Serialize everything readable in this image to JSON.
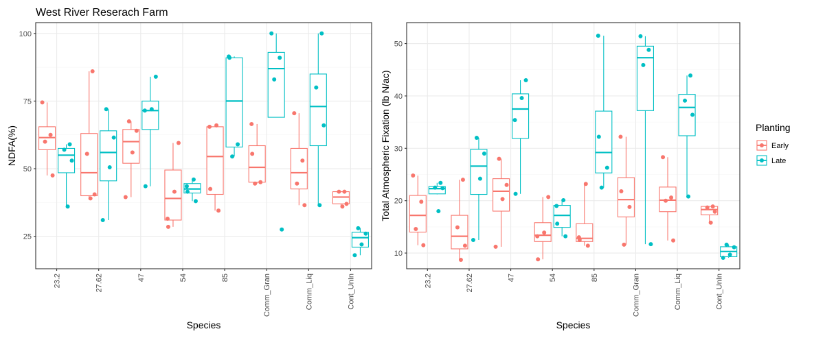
{
  "chart_data": [
    {
      "type": "box",
      "title": "West River Reserach Farm",
      "xlabel": "Species",
      "ylabel": "NDFA(%)",
      "categories": [
        "23.2",
        "27.62",
        "47",
        "54",
        "85",
        "Comm_Gran",
        "Comm_Liq",
        "Cont_UnIn"
      ],
      "ylim": [
        13,
        104
      ],
      "yticks": [
        25,
        50,
        75,
        100
      ],
      "grid": true,
      "series": [
        {
          "name": "Early",
          "color": "#F8766D",
          "boxes": [
            {
              "min": 47.5,
              "q1": 57,
              "median": 61.5,
              "q3": 65.5,
              "max": 74.5
            },
            {
              "min": 38.5,
              "q1": 40,
              "median": 48.5,
              "q3": 63,
              "max": 86
            },
            {
              "min": 39.5,
              "q1": 52,
              "median": 60,
              "q3": 64.5,
              "max": 67.5
            },
            {
              "min": 28.5,
              "q1": 31,
              "median": 39,
              "q3": 49.5,
              "max": 59.5
            },
            {
              "min": 34.5,
              "q1": 40.5,
              "median": 54.5,
              "q3": 65.5,
              "max": 66
            },
            {
              "min": 44.5,
              "q1": 45,
              "median": 50.5,
              "q3": 58.5,
              "max": 66.5
            },
            {
              "min": 36.5,
              "q1": 42.5,
              "median": 48.5,
              "q3": 57.5,
              "max": 70.5
            },
            {
              "min": 36,
              "q1": 37,
              "median": 39.5,
              "q3": 41.5,
              "max": 41.5
            }
          ],
          "points": [
            [
              74.5,
              62.5,
              60,
              47.5
            ],
            [
              86,
              55.5,
              40.5,
              39
            ],
            [
              67.5,
              64,
              56,
              39.5
            ],
            [
              59.5,
              41.5,
              31.5,
              28.5
            ],
            [
              66,
              65.5,
              42.5,
              34.5
            ],
            [
              66.5,
              55.5,
              45,
              44.5
            ],
            [
              70.5,
              53,
              44.5,
              36.5
            ],
            [
              41.5,
              41.5,
              37,
              36
            ]
          ]
        },
        {
          "name": "Late",
          "color": "#00BFC4",
          "boxes": [
            {
              "min": 36,
              "q1": 48.5,
              "median": 55,
              "q3": 57.5,
              "max": 59
            },
            {
              "min": 31,
              "q1": 45.5,
              "median": 56,
              "q3": 64,
              "max": 72
            },
            {
              "min": 43.5,
              "q1": 64.5,
              "median": 71.5,
              "q3": 75,
              "max": 84
            },
            {
              "min": 38,
              "q1": 41,
              "median": 42.5,
              "q3": 44.5,
              "max": 46
            },
            {
              "min": 54.5,
              "q1": 58,
              "median": 75,
              "q3": 91,
              "max": 91.5
            },
            {
              "min": 69,
              "q1": 69,
              "median": 87,
              "q3": 93,
              "max": 100
            },
            {
              "min": 36.5,
              "q1": 58.5,
              "median": 73,
              "q3": 85,
              "max": 100
            },
            {
              "min": 18,
              "q1": 21,
              "median": 24.5,
              "q3": 26.5,
              "max": 28
            }
          ],
          "points": [
            [
              59,
              57,
              53,
              36
            ],
            [
              72,
              61.5,
              50.5,
              31
            ],
            [
              84,
              72,
              71.5,
              43.5
            ],
            [
              46,
              43.5,
              41.5,
              38
            ],
            [
              91.5,
              91,
              59,
              54.5
            ],
            [
              100,
              91,
              83,
              27.5
            ],
            [
              100,
              80,
              66,
              36.5
            ],
            [
              28,
              26,
              22,
              18
            ]
          ]
        }
      ]
    },
    {
      "type": "box",
      "title": "",
      "xlabel": "Species",
      "ylabel": "Total Atmospheric Fixation (lb N/ac)",
      "categories": [
        "23.2",
        "27.62",
        "47",
        "54",
        "85",
        "Comm_Gran",
        "Comm_Liq",
        "Cont_UnIn"
      ],
      "ylim": [
        7,
        54
      ],
      "yticks": [
        10,
        20,
        30,
        40,
        50
      ],
      "grid": true,
      "series": [
        {
          "name": "Early",
          "color": "#F8766D",
          "boxes": [
            {
              "min": 11.5,
              "q1": 14,
              "median": 17.2,
              "q3": 21,
              "max": 24.8
            },
            {
              "min": 8.7,
              "q1": 10.8,
              "median": 13.2,
              "q3": 17.2,
              "max": 24
            },
            {
              "min": 11.2,
              "q1": 18,
              "median": 21.8,
              "q3": 24.2,
              "max": 28
            },
            {
              "min": 8.8,
              "q1": 12.2,
              "median": 13.4,
              "q3": 15.8,
              "max": 20.7
            },
            {
              "min": 11.4,
              "q1": 12.2,
              "median": 12.8,
              "q3": 15.6,
              "max": 23.2
            },
            {
              "min": 11.6,
              "q1": 16.9,
              "median": 20.2,
              "q3": 24.4,
              "max": 32.2
            },
            {
              "min": 12.4,
              "q1": 17.9,
              "median": 20.1,
              "q3": 22.6,
              "max": 28.3
            },
            {
              "min": 15.8,
              "q1": 17.3,
              "median": 18.3,
              "q3": 18.9,
              "max": 18.9
            }
          ],
          "points": [
            [
              24.8,
              19.8,
              14.6,
              11.5
            ],
            [
              24,
              14.9,
              11.4,
              8.7
            ],
            [
              28,
              23,
              20.3,
              11.2
            ],
            [
              20.7,
              13.9,
              13.2,
              8.8
            ],
            [
              23.2,
              13,
              12.5,
              11.4
            ],
            [
              32.2,
              21.8,
              18.8,
              11.6
            ],
            [
              28.3,
              20.6,
              20,
              12.4
            ],
            [
              18.9,
              18.7,
              17.9,
              15.8
            ]
          ]
        },
        {
          "name": "Late",
          "color": "#00BFC4",
          "boxes": [
            {
              "min": 21.2,
              "q1": 21.3,
              "median": 22.3,
              "q3": 22.7,
              "max": 23.4
            },
            {
              "min": 12.5,
              "q1": 21.2,
              "median": 26.6,
              "q3": 29.8,
              "max": 32
            },
            {
              "min": 21.3,
              "q1": 31.9,
              "median": 37.5,
              "q3": 40.4,
              "max": 43
            },
            {
              "min": 13.2,
              "q1": 14.9,
              "median": 17.2,
              "q3": 19.1,
              "max": 20.1
            },
            {
              "min": 22.5,
              "q1": 25.3,
              "median": 29.2,
              "q3": 37.1,
              "max": 51.5
            },
            {
              "min": 11.7,
              "q1": 37.2,
              "median": 47.3,
              "q3": 49.5,
              "max": 51.4
            },
            {
              "min": 20.8,
              "q1": 32.4,
              "median": 37.8,
              "q3": 40.3,
              "max": 43.9
            },
            {
              "min": 9.1,
              "q1": 9.3,
              "median": 10.3,
              "q3": 11.2,
              "max": 11.6
            }
          ],
          "points": [
            [
              23.4,
              22.5,
              22.4,
              18
            ],
            [
              32,
              29,
              24.2,
              12.5
            ],
            [
              43,
              39.6,
              35.4,
              21.3
            ],
            [
              20.1,
              19,
              15.6,
              13.2
            ],
            [
              51.5,
              32.2,
              26.3,
              22.5
            ],
            [
              51.4,
              48.8,
              45.9,
              11.7
            ],
            [
              43.9,
              39.1,
              36.4,
              20.8
            ],
            [
              11.6,
              11.1,
              9.7,
              9.1
            ]
          ]
        }
      ]
    }
  ],
  "legend": {
    "title": "Planting",
    "items": [
      {
        "label": "Early",
        "color": "#F8766D"
      },
      {
        "label": "Late",
        "color": "#00BFC4"
      }
    ]
  },
  "style": {
    "grid_major": "#ebebeb",
    "grid_minor": "#f5f5f5",
    "panel_border": "#333333",
    "tick_color": "#333333"
  }
}
